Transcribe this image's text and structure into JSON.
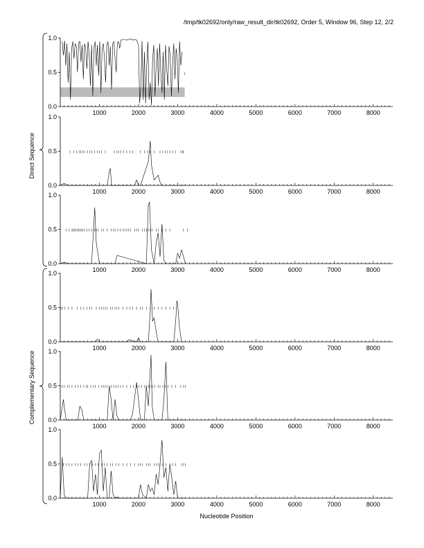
{
  "header": "/tmp/tk02692/only/raw_result_dir/tk02692, Order 5, Window 96, Step 12, 2/2",
  "x_axis_label": "Nucleotide Position",
  "group_labels": [
    "Direct Sequence",
    "Complementary Sequence"
  ],
  "colors": {
    "line": "#000000",
    "highlight": "#bbbbbb",
    "frame": "#000000"
  },
  "chart_data": {
    "type": "line",
    "xlim": [
      0,
      8500
    ],
    "ylim": [
      0,
      1
    ],
    "x_ticks": [
      1000,
      2000,
      3000,
      4000,
      5000,
      6000,
      7000,
      8000
    ],
    "y_ticks": [
      0.0,
      0.5,
      1.0
    ],
    "panels": [
      {
        "id": "coding-probability",
        "highlight_band": {
          "x": [
            0,
            3180
          ],
          "y": [
            0.14,
            0.28
          ]
        },
        "x": [
          50,
          80,
          110,
          140,
          170,
          200,
          230,
          260,
          290,
          320,
          350,
          380,
          410,
          440,
          470,
          500,
          530,
          560,
          590,
          620,
          650,
          680,
          710,
          740,
          770,
          800,
          830,
          860,
          890,
          920,
          950,
          980,
          1010,
          1040,
          1070,
          1100,
          1130,
          1160,
          1190,
          1220,
          1250,
          1280,
          1310,
          1340,
          1370,
          1400,
          1430,
          1460,
          1490,
          1520,
          1550,
          1600,
          1650,
          1700,
          1750,
          1800,
          1850,
          1900,
          1950,
          2000,
          2030,
          2060,
          2090,
          2120,
          2150,
          2180,
          2210,
          2240,
          2270,
          2300,
          2330,
          2360,
          2390,
          2420,
          2450,
          2480,
          2510,
          2540,
          2570,
          2600,
          2630,
          2660,
          2690,
          2720,
          2750,
          2780,
          2810,
          2840,
          2870,
          2900,
          2930,
          2960,
          2990,
          3020,
          3050,
          3080,
          3110
        ],
        "y": [
          0.95,
          0.75,
          0.96,
          0.6,
          0.92,
          0.35,
          0.8,
          0.1,
          0.85,
          0.95,
          0.7,
          0.92,
          0.88,
          0.5,
          0.93,
          0.95,
          0.65,
          0.9,
          0.4,
          0.92,
          0.85,
          0.55,
          0.95,
          0.75,
          0.3,
          0.9,
          0.15,
          0.85,
          0.95,
          0.6,
          0.9,
          0.45,
          0.95,
          0.2,
          0.85,
          0.92,
          0.7,
          0.35,
          0.9,
          0.95,
          0.6,
          0.88,
          0.25,
          0.92,
          0.95,
          0.7,
          0.5,
          0.93,
          0.95,
          0.85,
          0.97,
          0.98,
          0.98,
          0.97,
          0.98,
          0.99,
          0.97,
          0.98,
          0.97,
          0.9,
          0.05,
          0.3,
          0.96,
          0.1,
          0.8,
          0.05,
          0.6,
          0.95,
          0.1,
          0.35,
          0.02,
          0.7,
          0.9,
          0.15,
          0.6,
          0.85,
          0.3,
          0.92,
          0.5,
          0.2,
          0.8,
          0.1,
          0.9,
          0.55,
          0.3,
          0.88,
          0.75,
          0.15,
          0.6,
          0.92,
          0.4,
          0.85,
          0.7,
          0.2,
          0.95,
          0.6,
          0.8
        ],
        "ticks_y": 0.48,
        "tick_x": [
          3180
        ]
      },
      {
        "id": "direct-frame-1",
        "x": [
          0,
          100,
          200,
          300,
          1200,
          1250,
          1280,
          1310,
          1900,
          1950,
          2000,
          2050,
          2250,
          2300,
          2330,
          2360,
          2400,
          2500,
          2550,
          2600,
          2700,
          3000,
          3200
        ],
        "y": [
          0,
          0.03,
          0,
          0,
          0,
          0.2,
          0.25,
          0,
          0,
          0.08,
          0,
          0,
          0.35,
          0.65,
          0.3,
          0.2,
          0.08,
          0.15,
          0.05,
          0,
          0,
          0,
          0
        ],
        "ticks_y": 0.49,
        "tick_x": [
          250,
          350,
          420,
          480,
          520,
          570,
          620,
          700,
          760,
          810,
          880,
          950,
          1000,
          1050,
          1150,
          1380,
          1450,
          1500,
          1550,
          1620,
          1700,
          1780,
          1850,
          2050,
          2150,
          2230,
          2300,
          2400,
          2550,
          2620,
          2680,
          2730,
          2800,
          2870,
          2950,
          3080,
          3120,
          3150
        ]
      },
      {
        "id": "direct-frame-2",
        "x": [
          0,
          100,
          200,
          800,
          850,
          880,
          920,
          1000,
          1400,
          1450,
          2200,
          2250,
          2280,
          2330,
          2400,
          2450,
          2500,
          2550,
          2600,
          2650,
          2700,
          2950,
          3000,
          3050,
          3100,
          3200
        ],
        "y": [
          0,
          0.02,
          0,
          0,
          0.5,
          0.82,
          0.3,
          0,
          0,
          0.12,
          0,
          0.85,
          0.9,
          0.2,
          0,
          0.3,
          0.45,
          0.1,
          0.58,
          0.05,
          0,
          0,
          0.15,
          0.08,
          0.2,
          0
        ],
        "ticks_y": 0.49,
        "tick_x": [
          150,
          220,
          300,
          330,
          360,
          400,
          440,
          470,
          500,
          540,
          580,
          620,
          680,
          740,
          800,
          880,
          920,
          960,
          1050,
          1100,
          1200,
          1300,
          1350,
          1400,
          1470,
          1530,
          1600,
          1650,
          1700,
          1750,
          1800,
          1900,
          1950,
          2000,
          2100,
          2150,
          2200,
          2250,
          2300,
          2350,
          2450,
          2500,
          2600,
          2700,
          2800,
          3150,
          3250
        ]
      },
      {
        "id": "complementary-frame-1",
        "x": [
          0,
          900,
          950,
          1000,
          1700,
          1750,
          1950,
          2000,
          2050,
          2250,
          2300,
          2320,
          2360,
          2400,
          2450,
          2500,
          2900,
          2950,
          2980,
          3000,
          3050,
          3100,
          3200
        ],
        "y": [
          0,
          0,
          0.04,
          0,
          0,
          0.03,
          0,
          0.06,
          0,
          0,
          0.45,
          0.77,
          0.3,
          0.35,
          0.15,
          0,
          0,
          0.3,
          0.6,
          0.55,
          0.2,
          0,
          0
        ],
        "ticks_y": 0.49,
        "tick_x": [
          20,
          60,
          120,
          200,
          300,
          430,
          520,
          600,
          680,
          750,
          800,
          920,
          1000,
          1050,
          1100,
          1150,
          1200,
          1280,
          1330,
          1400,
          1450,
          1500,
          1600,
          1700,
          1780,
          1850,
          1950,
          2050,
          2100,
          2200,
          2300,
          2400,
          2500,
          2600,
          2700,
          2800,
          2900
        ]
      },
      {
        "id": "complementary-frame-2",
        "x": [
          0,
          80,
          100,
          150,
          200,
          450,
          500,
          550,
          600,
          1200,
          1250,
          1300,
          1350,
          1400,
          1450,
          1500,
          1800,
          1850,
          1950,
          2000,
          2050,
          2150,
          2200,
          2250,
          2320,
          2350,
          2400,
          2600,
          2650,
          2700,
          2750,
          3200
        ],
        "y": [
          0,
          0.3,
          0.2,
          0,
          0,
          0,
          0.2,
          0.15,
          0,
          0,
          0.5,
          0.3,
          0,
          0.3,
          0.05,
          0,
          0,
          0.1,
          0.55,
          0.3,
          0,
          0,
          0.5,
          0.2,
          0.95,
          0.2,
          0,
          0,
          0.3,
          0.85,
          0,
          0
        ],
        "ticks_y": 0.49,
        "tick_x": [
          50,
          100,
          180,
          230,
          300,
          380,
          450,
          520,
          600,
          660,
          700,
          780,
          850,
          900,
          980,
          1060,
          1100,
          1150,
          1200,
          1300,
          1370,
          1430,
          1480,
          1540,
          1600,
          1700,
          1800,
          1870,
          1950,
          2010,
          2080,
          2150,
          2200,
          2250,
          2300,
          2350,
          2420,
          2500,
          2550,
          2620,
          2680,
          2750,
          2850,
          2950,
          3080,
          3150,
          3200
        ]
      },
      {
        "id": "complementary-frame-3",
        "x": [
          0,
          50,
          100,
          150,
          200,
          700,
          750,
          800,
          850,
          900,
          950,
          1000,
          1050,
          1100,
          1150,
          1200,
          1250,
          1300,
          1350,
          1400,
          1450,
          1500,
          2000,
          2050,
          2100,
          2200,
          2250,
          2300,
          2350,
          2400,
          2450,
          2500,
          2550,
          2600,
          2650,
          2700,
          2750,
          2800,
          2850,
          2900,
          2950,
          3000,
          3100,
          3200
        ],
        "y": [
          0,
          0.6,
          0.05,
          0,
          0,
          0,
          0.5,
          0.55,
          0.1,
          0.35,
          0.05,
          0.65,
          0.7,
          0.1,
          0.45,
          0,
          0,
          0.4,
          0.05,
          0,
          0.02,
          0,
          0,
          0.2,
          0.05,
          0,
          0.2,
          0.1,
          0.15,
          0.05,
          0.35,
          0.2,
          0.5,
          0.85,
          0.3,
          0.45,
          0.1,
          0.5,
          0.3,
          0.05,
          0.25,
          0,
          0,
          0
        ],
        "ticks_y": 0.49,
        "tick_x": [
          80,
          150,
          220,
          300,
          380,
          450,
          520,
          620,
          680,
          750,
          820,
          900,
          960,
          1050,
          1120,
          1200,
          1280,
          1340,
          1420,
          1500,
          1600,
          1700,
          1800,
          1900,
          2000,
          2050,
          2100,
          2200,
          2250,
          2300,
          2400,
          2450,
          2500,
          2550,
          2620,
          2700,
          2800,
          2880,
          2950,
          3100,
          3150,
          3200
        ]
      }
    ]
  }
}
